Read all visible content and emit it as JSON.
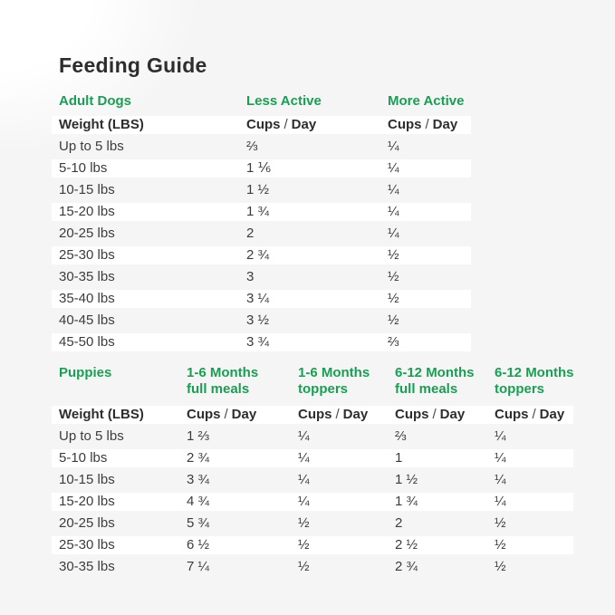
{
  "title": "Feeding Guide",
  "colors": {
    "accent_green": "#189f54",
    "title_text": "#2d2d2d",
    "body_text": "#3c3c3c",
    "row_highlight": "#ffffff",
    "background": "#f5f5f5"
  },
  "cups_per_day": {
    "cups": "Cups",
    "slash": "/",
    "day": "Day"
  },
  "adult_table": {
    "section_label": "Adult Dogs",
    "weight_header": "Weight (LBS)",
    "columns": [
      {
        "label": "Less Active"
      },
      {
        "label": "More Active"
      }
    ],
    "rows": [
      {
        "weight": "Up to 5 lbs",
        "less_active": "⅔",
        "more_active": "¼"
      },
      {
        "weight": "5-10 lbs",
        "less_active": "1 ⅙",
        "more_active": "¼"
      },
      {
        "weight": "10-15 lbs",
        "less_active": "1 ½",
        "more_active": "¼"
      },
      {
        "weight": "15-20 lbs",
        "less_active": "1 ¾",
        "more_active": "¼"
      },
      {
        "weight": "20-25 lbs",
        "less_active": "2",
        "more_active": "¼"
      },
      {
        "weight": "25-30 lbs",
        "less_active": "2 ¾",
        "more_active": "½"
      },
      {
        "weight": "30-35 lbs",
        "less_active": "3",
        "more_active": "½"
      },
      {
        "weight": "35-40 lbs",
        "less_active": "3 ¼",
        "more_active": "½"
      },
      {
        "weight": "40-45 lbs",
        "less_active": "3 ½",
        "more_active": "½"
      },
      {
        "weight": "45-50 lbs",
        "less_active": "3 ¾",
        "more_active": "⅔"
      }
    ]
  },
  "puppy_table": {
    "section_label": "Puppies",
    "weight_header": "Weight (LBS)",
    "columns": [
      {
        "label_line1": "1-6 Months",
        "label_line2": "full meals"
      },
      {
        "label_line1": "1-6 Months",
        "label_line2": "toppers"
      },
      {
        "label_line1": "6-12 Months",
        "label_line2": "full meals"
      },
      {
        "label_line1": "6-12 Months",
        "label_line2": "toppers"
      }
    ],
    "rows": [
      {
        "weight": "Up to 5 lbs",
        "full_1_6": "1 ⅔",
        "toppers_1_6": "¼",
        "full_6_12": "⅔",
        "toppers_6_12": "¼"
      },
      {
        "weight": "5-10 lbs",
        "full_1_6": "2 ¾",
        "toppers_1_6": "¼",
        "full_6_12": "1",
        "toppers_6_12": "¼"
      },
      {
        "weight": "10-15 lbs",
        "full_1_6": "3 ¾",
        "toppers_1_6": "¼",
        "full_6_12": "1 ½",
        "toppers_6_12": "¼"
      },
      {
        "weight": "15-20 lbs",
        "full_1_6": "4 ¾",
        "toppers_1_6": "¼",
        "full_6_12": "1 ¾",
        "toppers_6_12": "¼"
      },
      {
        "weight": "20-25 lbs",
        "full_1_6": "5 ¾",
        "toppers_1_6": "½",
        "full_6_12": "2",
        "toppers_6_12": "½"
      },
      {
        "weight": "25-30 lbs",
        "full_1_6": "6 ½",
        "toppers_1_6": "½",
        "full_6_12": "2 ½",
        "toppers_6_12": "½"
      },
      {
        "weight": "30-35 lbs",
        "full_1_6": "7 ¼",
        "toppers_1_6": "½",
        "full_6_12": "2 ¾",
        "toppers_6_12": "½"
      }
    ]
  }
}
